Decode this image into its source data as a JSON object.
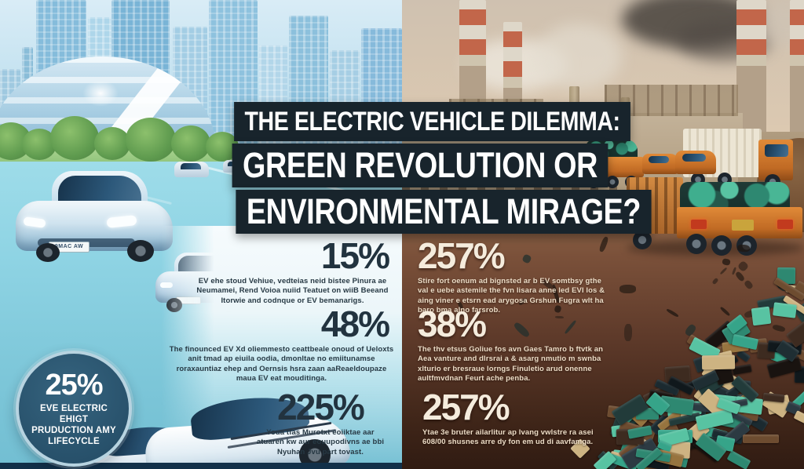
{
  "title": {
    "line1": "THE ELECTRIC VEHICLE DILEMMA:",
    "line2": "GREEN REVOLUTION OR",
    "line3": "ENVIRONMENTAL MIRAGE?"
  },
  "left_stats": [
    {
      "value": "15%",
      "text": "EV ehe stoud Vehiue, vedteias neid bistee Pinura ae Neumamei, Rend Voioa nuiid Teatuet on wiiB Beeand Itorwie and codnque or EV bemanarigs."
    },
    {
      "value": "48%",
      "text": "The finounced EV Xd oliemmesto ceattbeale onoud of Ueloxts anit tmad ap eiuila oodia, dmonltae no emiitunamse roraxauntiaz ehep and Oernsis hsra zaan aaReaeldoupaze maua EV eat mouditinga."
    },
    {
      "value": "225%",
      "text": "Youa tfas Murotxt eoiiktae aar atuaren kw aur eouupodivns ae bbi Nyuhan Jvu part tovast."
    }
  ],
  "right_stats": [
    {
      "value": "257%",
      "text": "Stire fort oenum ad bignsted ar b EV somtbsy gthe val e uebe astemile the fvn lisara anne led EVI los & aing viner e etsrn ead arygosa Grshun Fugra wlt ha baro bma alno farsrob."
    },
    {
      "value": "38%",
      "text": "The thv etsus Goliue fos avn Gaes Tamro b ftvtk an Aea vanture and dlrsrai a & asarg nmutio m swnba xlturio er bresraue lorngs Finuletio arud onenne aultfmvdnan Feurt ache penba."
    },
    {
      "value": "257%",
      "text": "Ytae 3e bruter ailarlitur ap lvang vwlstre ra asei 608/00 shusnes arre dy fon em ud di aavfamga."
    }
  ],
  "badge": {
    "value": "25%",
    "label": "EVE ELECTRIC EHIGT PRUDUCTION AMY LIFECYCLE"
  },
  "plates": {
    "main": "9MAC AW"
  },
  "colors": {
    "banner_bg": "#18242C",
    "title_text": "#FFFFFF",
    "left_stat_text": "#22333F",
    "right_stat_text": "#F5ECDD",
    "badge_bg": "#2C5871",
    "badge_ring": "#B7D3E0",
    "road_teal": "#8ED2E3",
    "dirt_brown": "#5E3A2A",
    "battery_teal": "#2E9E88",
    "truck_orange": "#D97E2F"
  }
}
